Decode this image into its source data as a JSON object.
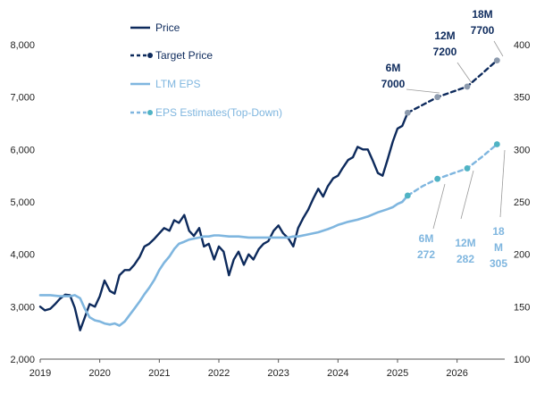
{
  "chart_data": {
    "type": "line",
    "title": "",
    "xlabel": "",
    "ylabel_left": "",
    "ylabel_right": "",
    "x_ticks": [
      "2019",
      "2020",
      "2021",
      "2022",
      "2023",
      "2024",
      "2025",
      "2026"
    ],
    "y_left": {
      "min": 2000,
      "max": 8000,
      "ticks": [
        "2,000",
        "3,000",
        "4,000",
        "5,000",
        "6,000",
        "7,000",
        "8,000"
      ]
    },
    "y_right": {
      "min": 100,
      "max": 400,
      "ticks": [
        "100",
        "150",
        "200",
        "250",
        "300",
        "350",
        "400"
      ]
    },
    "grid": false,
    "legend_position": "top-left",
    "colors": {
      "price": "#0d2a5c",
      "eps": "#7fb6df",
      "marker_price": "#8c9aad",
      "marker_eps": "#4fb3c4",
      "leader": "#9a9a9a"
    },
    "series": [
      {
        "name": "Price",
        "axis": "left",
        "style": "solid",
        "points": [
          [
            2019.0,
            3000
          ],
          [
            2019.08,
            2930
          ],
          [
            2019.17,
            2960
          ],
          [
            2019.25,
            3050
          ],
          [
            2019.33,
            3150
          ],
          [
            2019.42,
            3230
          ],
          [
            2019.5,
            3220
          ],
          [
            2019.58,
            2980
          ],
          [
            2019.67,
            2550
          ],
          [
            2019.75,
            2800
          ],
          [
            2019.83,
            3050
          ],
          [
            2019.92,
            3000
          ],
          [
            2020.0,
            3200
          ],
          [
            2020.08,
            3500
          ],
          [
            2020.17,
            3300
          ],
          [
            2020.25,
            3250
          ],
          [
            2020.33,
            3600
          ],
          [
            2020.42,
            3700
          ],
          [
            2020.5,
            3700
          ],
          [
            2020.58,
            3800
          ],
          [
            2020.67,
            3950
          ],
          [
            2020.75,
            4150
          ],
          [
            2020.83,
            4200
          ],
          [
            2020.92,
            4300
          ],
          [
            2021.0,
            4400
          ],
          [
            2021.08,
            4500
          ],
          [
            2021.17,
            4450
          ],
          [
            2021.25,
            4650
          ],
          [
            2021.33,
            4600
          ],
          [
            2021.42,
            4750
          ],
          [
            2021.5,
            4450
          ],
          [
            2021.58,
            4350
          ],
          [
            2021.67,
            4500
          ],
          [
            2021.75,
            4150
          ],
          [
            2021.83,
            4200
          ],
          [
            2021.92,
            3900
          ],
          [
            2022.0,
            4150
          ],
          [
            2022.08,
            4050
          ],
          [
            2022.17,
            3600
          ],
          [
            2022.25,
            3900
          ],
          [
            2022.33,
            4050
          ],
          [
            2022.42,
            3800
          ],
          [
            2022.5,
            4000
          ],
          [
            2022.58,
            3900
          ],
          [
            2022.67,
            4100
          ],
          [
            2022.75,
            4200
          ],
          [
            2022.83,
            4250
          ],
          [
            2022.92,
            4450
          ],
          [
            2023.0,
            4550
          ],
          [
            2023.08,
            4400
          ],
          [
            2023.17,
            4300
          ],
          [
            2023.25,
            4150
          ],
          [
            2023.33,
            4500
          ],
          [
            2023.42,
            4700
          ],
          [
            2023.5,
            4850
          ],
          [
            2023.58,
            5050
          ],
          [
            2023.67,
            5250
          ],
          [
            2023.75,
            5100
          ],
          [
            2023.83,
            5300
          ],
          [
            2023.92,
            5450
          ],
          [
            2024.0,
            5500
          ],
          [
            2024.08,
            5650
          ],
          [
            2024.17,
            5800
          ],
          [
            2024.25,
            5850
          ],
          [
            2024.33,
            6050
          ],
          [
            2024.42,
            6000
          ],
          [
            2024.5,
            6000
          ],
          [
            2024.58,
            5800
          ],
          [
            2024.67,
            5550
          ],
          [
            2024.75,
            5500
          ],
          [
            2024.83,
            5800
          ],
          [
            2024.92,
            6150
          ],
          [
            2025.0,
            6400
          ],
          [
            2025.08,
            6450
          ],
          [
            2025.17,
            6700
          ]
        ]
      },
      {
        "name": "Target Price",
        "axis": "left",
        "style": "dashed",
        "points": [
          [
            2025.17,
            6700
          ],
          [
            2025.42,
            6850
          ],
          [
            2025.67,
            7000
          ],
          [
            2025.92,
            7100
          ],
          [
            2026.17,
            7200
          ],
          [
            2026.42,
            7450
          ],
          [
            2026.67,
            7700
          ]
        ]
      },
      {
        "name": "LTM EPS",
        "axis": "right",
        "style": "solid",
        "points": [
          [
            2019.0,
            161
          ],
          [
            2019.17,
            161
          ],
          [
            2019.33,
            160
          ],
          [
            2019.5,
            160
          ],
          [
            2019.58,
            161
          ],
          [
            2019.67,
            158
          ],
          [
            2019.75,
            148
          ],
          [
            2019.83,
            140
          ],
          [
            2019.92,
            137
          ],
          [
            2020.0,
            136
          ],
          [
            2020.08,
            134
          ],
          [
            2020.17,
            133
          ],
          [
            2020.25,
            134
          ],
          [
            2020.33,
            132
          ],
          [
            2020.42,
            136
          ],
          [
            2020.5,
            142
          ],
          [
            2020.58,
            148
          ],
          [
            2020.67,
            155
          ],
          [
            2020.75,
            162
          ],
          [
            2020.83,
            168
          ],
          [
            2020.92,
            176
          ],
          [
            2021.0,
            185
          ],
          [
            2021.08,
            192
          ],
          [
            2021.17,
            198
          ],
          [
            2021.25,
            205
          ],
          [
            2021.33,
            210
          ],
          [
            2021.42,
            212
          ],
          [
            2021.5,
            214
          ],
          [
            2021.58,
            215
          ],
          [
            2021.67,
            216
          ],
          [
            2021.75,
            217
          ],
          [
            2021.83,
            217
          ],
          [
            2021.92,
            218
          ],
          [
            2022.0,
            218
          ],
          [
            2022.17,
            217
          ],
          [
            2022.33,
            217
          ],
          [
            2022.5,
            216
          ],
          [
            2022.67,
            216
          ],
          [
            2022.83,
            216
          ],
          [
            2022.92,
            216
          ],
          [
            2023.0,
            216
          ],
          [
            2023.17,
            216
          ],
          [
            2023.25,
            217
          ],
          [
            2023.33,
            217
          ],
          [
            2023.5,
            219
          ],
          [
            2023.67,
            221
          ],
          [
            2023.83,
            224
          ],
          [
            2023.92,
            226
          ],
          [
            2024.0,
            228
          ],
          [
            2024.17,
            231
          ],
          [
            2024.33,
            233
          ],
          [
            2024.5,
            236
          ],
          [
            2024.67,
            240
          ],
          [
            2024.83,
            243
          ],
          [
            2024.92,
            245
          ],
          [
            2025.0,
            248
          ],
          [
            2025.08,
            250
          ],
          [
            2025.17,
            256
          ]
        ]
      },
      {
        "name": "EPS Estimates(Top-Down)",
        "axis": "right",
        "style": "dashed",
        "points": [
          [
            2025.17,
            256
          ],
          [
            2025.42,
            265
          ],
          [
            2025.67,
            272
          ],
          [
            2025.92,
            277
          ],
          [
            2026.17,
            282
          ],
          [
            2026.42,
            293
          ],
          [
            2026.67,
            305
          ]
        ]
      }
    ],
    "markers": [
      {
        "series": "Target Price",
        "x": 2025.17,
        "y": 6700
      },
      {
        "series": "Target Price",
        "x": 2025.67,
        "y": 7000
      },
      {
        "series": "Target Price",
        "x": 2026.17,
        "y": 7200
      },
      {
        "series": "Target Price",
        "x": 2026.67,
        "y": 7700
      },
      {
        "series": "EPS Estimates(Top-Down)",
        "x": 2025.17,
        "y": 256
      },
      {
        "series": "EPS Estimates(Top-Down)",
        "x": 2025.67,
        "y": 272
      },
      {
        "series": "EPS Estimates(Top-Down)",
        "x": 2026.17,
        "y": 282
      },
      {
        "series": "EPS Estimates(Top-Down)",
        "x": 2026.67,
        "y": 305
      }
    ],
    "annotations": [
      {
        "group": "price",
        "lines": [
          "6M",
          "7000"
        ],
        "x": 2025.67,
        "y": 7000
      },
      {
        "group": "price",
        "lines": [
          "12M",
          "7200"
        ],
        "x": 2026.17,
        "y": 7200
      },
      {
        "group": "price",
        "lines": [
          "18M",
          "7700"
        ],
        "x": 2026.67,
        "y": 7700
      },
      {
        "group": "eps",
        "lines": [
          "6M",
          "272"
        ],
        "x": 2025.67,
        "y": 272
      },
      {
        "group": "eps",
        "lines": [
          "12M",
          "282"
        ],
        "x": 2026.17,
        "y": 282
      },
      {
        "group": "eps",
        "lines": [
          "18",
          "M",
          "305"
        ],
        "x": 2026.67,
        "y": 305
      }
    ]
  }
}
